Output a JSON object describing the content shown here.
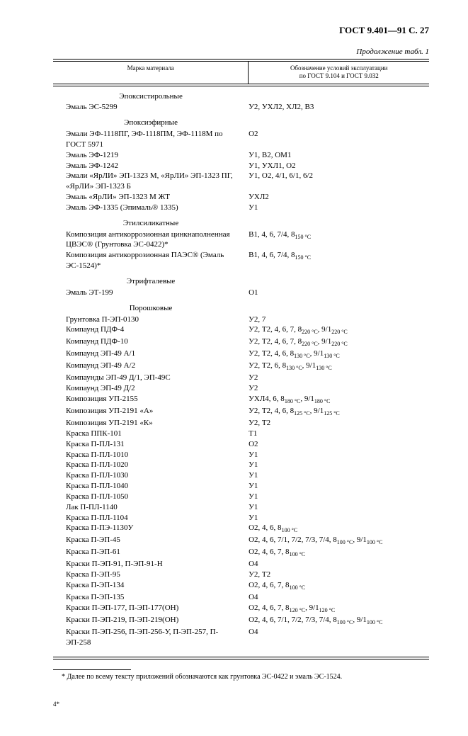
{
  "header": "ГОСТ 9.401—91 С. 27",
  "caption": "Продолжение табл. 1",
  "columns": {
    "left": "Марка материала",
    "right": "Обозначение условий эксплуатации\nпо ГОСТ 9.104 и ГОСТ 9.032"
  },
  "sections": [
    {
      "title": "Эпоксистирольные",
      "rows": [
        {
          "l": "Эмаль ЭС-5299",
          "r": "У2, УХЛ2, ХЛ2, В3"
        }
      ]
    },
    {
      "title": "Эпоксиэфирные",
      "rows": [
        {
          "l": "Эмали ЭФ-1118ПГ, ЭФ-1118ПМ, ЭФ-1118М по ГОСТ 5971",
          "r": "О2"
        },
        {
          "l": "Эмаль ЭФ-1219",
          "r": "У1, В2, ОМ1"
        },
        {
          "l": "Эмаль ЭФ-1242",
          "r": "У1, УХЛ1, О2"
        },
        {
          "l": "Эмали «ЯрЛИ» ЭП-1323 М, «ЯрЛИ» ЭП-1323 ПГ, «ЯрЛИ» ЭП-1323 Б",
          "r": "У1, О2, 4/1, 6/1, 6/2"
        },
        {
          "l": "Эмаль «ЯрЛИ» ЭП-1323 М ЖТ",
          "r": "УХЛ2"
        },
        {
          "l": "Эмаль ЭФ-1335 (Эпималь® 1335)",
          "r": "У1"
        }
      ]
    },
    {
      "title": "Этилсиликатные",
      "rows": [
        {
          "l": "Композиция антикоррозионная цинкнаполненная ЦВЭС® (Грунтовка ЭС-0422)*",
          "r": "В1, 4, 6, 7/4, 8",
          "sub": "150 °С"
        },
        {
          "l": "Композиция антикоррозионная ПАЭС® (Эмаль ЭС-1524)*",
          "r": "В1, 4, 6, 7/4, 8",
          "sub": "150 °С"
        }
      ]
    },
    {
      "title": "Этрифталевые",
      "rows": [
        {
          "l": "Эмаль ЭТ-199",
          "r": "О1"
        }
      ]
    },
    {
      "title": "Порошковые",
      "rows": [
        {
          "l": "Грунтовка П-ЭП-0130",
          "r": "У2, 7"
        },
        {
          "l": "Компаунд ПДФ-4",
          "r_html": "У2, Т2, 4, 6, 7, 8<span class='sub'>220 °С</span>, 9/1<span class='sub'>220 °С</span>"
        },
        {
          "l": "Компаунд ПДФ-10",
          "r_html": "У2, Т2, 4, 6, 7, 8<span class='sub'>220 °С</span>, 9/1<span class='sub'>220 °С</span>"
        },
        {
          "l": "Компаунд ЭП-49 А/1",
          "r_html": "У2, Т2, 4, 6, 8<span class='sub'>130 °С</span>, 9/1<span class='sub'>130 °С</span>"
        },
        {
          "l": "Компаунд ЭП-49 А/2",
          "r_html": "У2, Т2, 6, 8<span class='sub'>130 °С</span>, 9/1<span class='sub'>130 °С</span>"
        },
        {
          "l": "Компаунды ЭП-49 Д/1, ЭП-49С",
          "r": "У2"
        },
        {
          "l": "Компаунд ЭП-49 Д/2",
          "r": "У2"
        },
        {
          "l": "Композиция УП-2155",
          "r_html": "УХЛ4, 6, 8<span class='sub'>180 °С</span>, 9/1<span class='sub'>180 °С</span>"
        },
        {
          "l": "Композиция УП-2191 «А»",
          "r_html": "У2, Т2, 4, 6, 8<span class='sub'>125 °С</span>, 9/1<span class='sub'>125 °С</span>"
        },
        {
          "l": "Композиция УП-2191 «К»",
          "r": "У2, Т2"
        },
        {
          "l": "Краска ППК-101",
          "r": "Т1"
        },
        {
          "l": "Краска П-ПЛ-131",
          "r": "О2"
        },
        {
          "l": "Краска П-ПЛ-1010",
          "r": "У1"
        },
        {
          "l": "Краска П-ПЛ-1020",
          "r": "У1"
        },
        {
          "l": "Краска П-ПЛ-1030",
          "r": "У1"
        },
        {
          "l": "Краска П-ПЛ-1040",
          "r": "У1"
        },
        {
          "l": "Краска П-ПЛ-1050",
          "r": "У1"
        },
        {
          "l": "Лак П-ПЛ-1140",
          "r": "У1"
        },
        {
          "l": "Краска П-ПЛ-1104",
          "r": "У1"
        },
        {
          "l": "Краска П-ПЭ-1130У",
          "r_html": "О2, 4, 6, 8<span class='sub'>100 °С</span>"
        },
        {
          "l": "Краска П-ЭП-45",
          "r_html": "О2, 4, 6, 7/1, 7/2, 7/3, 7/4, 8<span class='sub'>100 °С</span>, 9/1<span class='sub'>100 °С</span>"
        },
        {
          "l": "Краска П-ЭП-61",
          "r_html": "О2, 4, 6, 7, 8<span class='sub'>100 °С</span>"
        },
        {
          "l": "Краски П-ЭП-91, П-ЭП-91-Н",
          "r": "О4"
        },
        {
          "l": "Краска П-ЭП-95",
          "r": "У2, Т2"
        },
        {
          "l": "Краска П-ЭП-134",
          "r_html": "О2, 4, 6, 7, 8<span class='sub'>100 °С</span>"
        },
        {
          "l": "Краска П-ЭП-135",
          "r": "О4"
        },
        {
          "l": "Краски П-ЭП-177, П-ЭП-177(ОН)",
          "r_html": "О2, 4, 6, 7, 8<span class='sub'>120 °С</span>, 9/1<span class='sub'>120 °С</span>"
        },
        {
          "l": "Краски П-ЭП-219, П-ЭП-219(ОН)",
          "r_html": "О2, 4, 6, 7/1, 7/2, 7/3, 7/4, 8<span class='sub'>100 °С</span>, 9/1<span class='sub'>100 °С</span>"
        },
        {
          "l": "Краски П-ЭП-256, П-ЭП-256-У, П-ЭП-257, П-ЭП-258",
          "r": "О4"
        }
      ]
    }
  ],
  "footnote": "* Далее по всему тексту приложений обозначаются как грунтовка ЭС-0422 и эмаль ЭС-1524.",
  "footer": "4*"
}
